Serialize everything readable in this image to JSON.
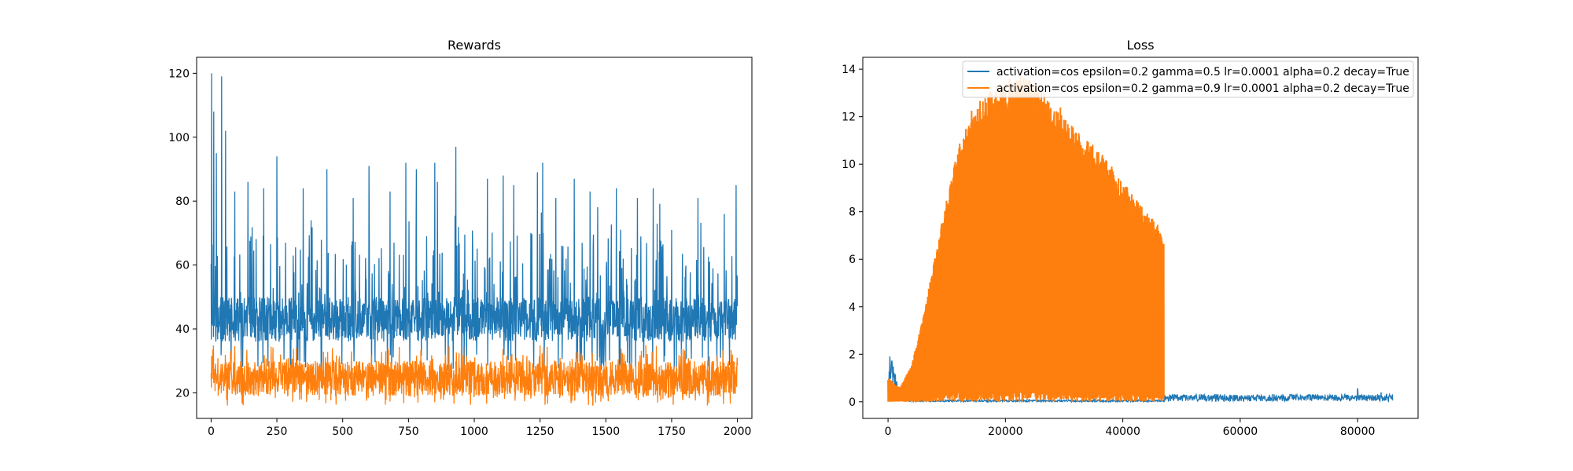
{
  "colors": {
    "series_blue": "#1f77b4",
    "series_orange": "#ff7f0e"
  },
  "chart_data": [
    {
      "type": "line",
      "title": "Rewards",
      "xlabel": "",
      "ylabel": "",
      "xlim": [
        -55,
        2055
      ],
      "ylim": [
        12,
        125
      ],
      "xticks": [
        0,
        250,
        500,
        750,
        1000,
        1250,
        1500,
        1750,
        2000
      ],
      "yticks": [
        20,
        40,
        60,
        80,
        100,
        120
      ],
      "grid": false,
      "legend": null,
      "series": [
        {
          "color": "#1f77b4",
          "x_range": [
            0,
            2000
          ],
          "values_profile": {
            "typical_range": [
              30,
              55
            ],
            "peaks": [
              [
                2,
                120
              ],
              [
                10,
                108
              ],
              [
                20,
                95
              ],
              [
                40,
                119
              ],
              [
                55,
                102
              ],
              [
                90,
                83
              ],
              [
                140,
                86
              ],
              [
                200,
                84
              ],
              [
                250,
                94
              ],
              [
                350,
                84
              ],
              [
                380,
                74
              ],
              [
                440,
                90
              ],
              [
                540,
                81
              ],
              [
                600,
                91
              ],
              [
                680,
                83
              ],
              [
                740,
                92
              ],
              [
                780,
                90
              ],
              [
                850,
                92
              ],
              [
                860,
                86
              ],
              [
                930,
                97
              ],
              [
                1050,
                87
              ],
              [
                1110,
                88
              ],
              [
                1150,
                85
              ],
              [
                1240,
                89
              ],
              [
                1260,
                92
              ],
              [
                1310,
                81
              ],
              [
                1380,
                87
              ],
              [
                1440,
                83
              ],
              [
                1540,
                84
              ],
              [
                1620,
                81
              ],
              [
                1680,
                84
              ],
              [
                1750,
                71
              ],
              [
                1850,
                81
              ],
              [
                1950,
                76
              ],
              [
                1995,
                85
              ]
            ],
            "troughs_min": 27
          }
        },
        {
          "color": "#ff7f0e",
          "x_range": [
            0,
            2000
          ],
          "values_profile": {
            "typical_range": [
              18,
              32
            ],
            "max": 36,
            "min": 16
          }
        }
      ]
    },
    {
      "type": "line",
      "title": "Loss",
      "xlabel": "",
      "ylabel": "",
      "xlim": [
        -4300,
        90300
      ],
      "ylim": [
        -0.7,
        14.5
      ],
      "xticks": [
        0,
        20000,
        40000,
        60000,
        80000
      ],
      "xtick_labels": [
        "0",
        "20000",
        "40000",
        "60000",
        "80000"
      ],
      "yticks": [
        0,
        2,
        4,
        6,
        8,
        10,
        12,
        14
      ],
      "grid": false,
      "legend": "upper right",
      "series": [
        {
          "name": "activation=cos epsilon=0.2 gamma=0.5 lr=0.0001 alpha=0.2 decay=True",
          "color": "#1f77b4",
          "x_range": [
            0,
            86000
          ],
          "values_profile": {
            "early_spike": [
              [
                0,
                0.3
              ],
              [
                300,
                1.95
              ],
              [
                1500,
                0.8
              ],
              [
                3000,
                0.1
              ]
            ],
            "baseline": 0.1,
            "band_after_47000": [
              0,
              0.35
            ],
            "spikes": [
              [
                80000,
                0.55
              ],
              [
                84000,
                0.4
              ]
            ]
          }
        },
        {
          "name": "activation=cos epsilon=0.2 gamma=0.9 lr=0.0001 alpha=0.2 decay=True",
          "color": "#ff7f0e",
          "x_range": [
            0,
            47000
          ],
          "envelope_upper": [
            [
              0,
              1.0
            ],
            [
              2000,
              0.6
            ],
            [
              4000,
              1.5
            ],
            [
              6000,
              3.5
            ],
            [
              8000,
              6.0
            ],
            [
              10000,
              8.5
            ],
            [
              12000,
              10.5
            ],
            [
              14000,
              12.0
            ],
            [
              17000,
              12.8
            ],
            [
              20000,
              13.3
            ],
            [
              23000,
              13.6
            ],
            [
              26000,
              13.0
            ],
            [
              29000,
              12.3
            ],
            [
              32000,
              11.2
            ],
            [
              35000,
              10.6
            ],
            [
              38000,
              9.8
            ],
            [
              41000,
              8.8
            ],
            [
              44000,
              7.8
            ],
            [
              46000,
              7.4
            ],
            [
              47000,
              6.5
            ]
          ],
          "envelope_lower": 0
        }
      ]
    }
  ]
}
